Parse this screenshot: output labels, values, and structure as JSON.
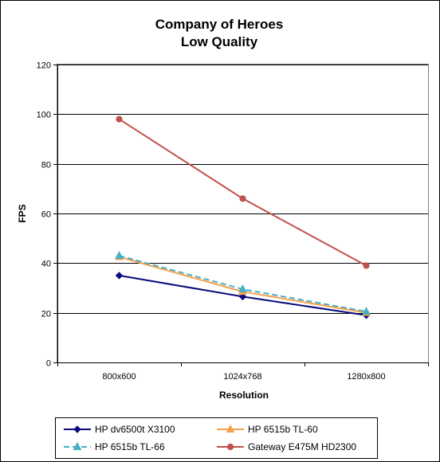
{
  "chart_data": {
    "type": "line",
    "title": "Company of Heroes",
    "subtitle": "Low Quality",
    "xlabel": "Resolution",
    "ylabel": "FPS",
    "categories": [
      "800x600",
      "1024x768",
      "1280x800"
    ],
    "ylim": [
      0,
      120
    ],
    "yticks": [
      0,
      20,
      40,
      60,
      80,
      100,
      120
    ],
    "grid": true,
    "legend_position": "bottom",
    "series": [
      {
        "name": "HP dv6500t  X3100",
        "values": [
          35,
          26.5,
          19
        ],
        "color": "#0a0a7a",
        "marker": "diamond",
        "dash": "solid"
      },
      {
        "name": "HP 6515b  TL-60",
        "values": [
          42.5,
          28.5,
          20
        ],
        "color": "#f5a04a",
        "marker": "triangle",
        "dash": "solid"
      },
      {
        "name": "HP 6515b  TL-66",
        "values": [
          43,
          29.5,
          20.5
        ],
        "color": "#4aaec4",
        "marker": "triangle",
        "dash": "dashed"
      },
      {
        "name": "Gateway  E475M  HD2300",
        "values": [
          98,
          66,
          39
        ],
        "color": "#c0504d",
        "marker": "circle",
        "dash": "solid"
      }
    ]
  }
}
